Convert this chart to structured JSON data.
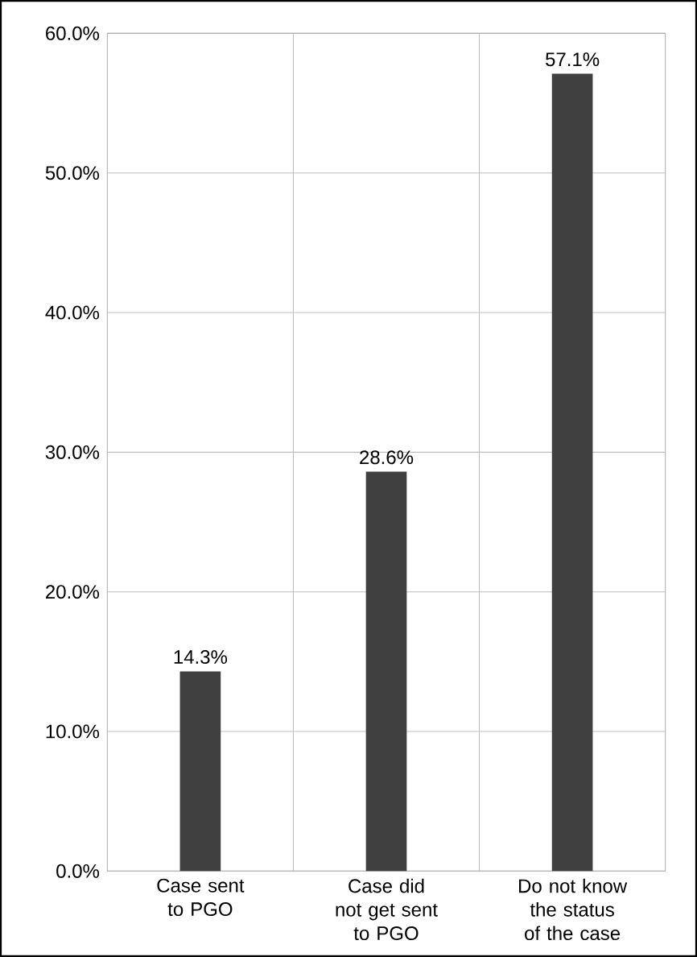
{
  "chart_data": {
    "type": "bar",
    "categories": [
      "Case sent to PGO",
      "Case did not get sent to PGO",
      "Do not know the status of the case"
    ],
    "values": [
      14.3,
      28.6,
      57.1
    ],
    "value_labels": [
      "14.3%",
      "28.6%",
      "57.1%"
    ],
    "color": "#404040",
    "ylim": [
      0,
      60
    ],
    "yticks": [
      {
        "value": 0,
        "label": "0.0%"
      },
      {
        "value": 10,
        "label": "10.0%"
      },
      {
        "value": 20,
        "label": "20.0%"
      },
      {
        "value": 30,
        "label": "30.0%"
      },
      {
        "value": 40,
        "label": "40.0%"
      },
      {
        "value": 50,
        "label": "50.0%"
      },
      {
        "value": 60,
        "label": "60.0%"
      }
    ],
    "grid": true
  }
}
